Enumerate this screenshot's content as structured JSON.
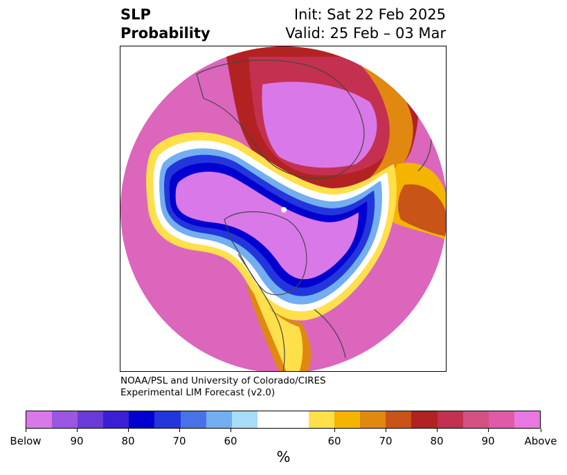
{
  "header": {
    "title_line1": "SLP",
    "title_line2": "Probability",
    "init": "Init: Sat 22 Feb 2025",
    "valid": "Valid: 25 Feb – 03 Mar"
  },
  "credit": {
    "line1": "NOAA/PSL and University of Colorado/CIRES",
    "line2": "Experimental LIM Forecast (v2.0)"
  },
  "colorbar": {
    "colors": [
      "#d978e8",
      "#9b57e0",
      "#6a3ad8",
      "#3a1fd6",
      "#0000d0",
      "#2236dc",
      "#4a72e8",
      "#72aef0",
      "#a8dcf8",
      "#ffffff",
      "#ffe04a",
      "#f4b400",
      "#e08810",
      "#c85418",
      "#b22222",
      "#c43050",
      "#d45082",
      "#e05aa8",
      "#e878e0"
    ],
    "tick_labels": [
      "Below",
      "90",
      "80",
      "70",
      "60",
      "60",
      "70",
      "80",
      "90",
      "Above"
    ],
    "unit": "%"
  }
}
